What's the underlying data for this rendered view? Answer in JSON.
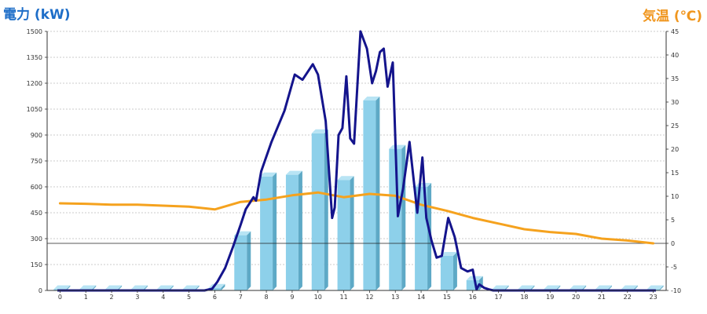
{
  "chart_data": {
    "type": "bar",
    "title_left": "電力 (kW)",
    "title_right": "気温 (℃)",
    "categories": [
      "0",
      "1",
      "2",
      "3",
      "4",
      "5",
      "6",
      "7",
      "8",
      "9",
      "10",
      "11",
      "12",
      "13",
      "14",
      "15",
      "16",
      "17",
      "18",
      "19",
      "20",
      "21",
      "22",
      "23"
    ],
    "y_left_ticks": [
      "0",
      "150",
      "300",
      "450",
      "600",
      "750",
      "900",
      "1050",
      "1200",
      "1350",
      "1500"
    ],
    "y_right_ticks": [
      "-10",
      "-5",
      "0",
      "5",
      "10",
      "15",
      "20",
      "25",
      "30",
      "35",
      "40",
      "45"
    ],
    "ylim_left": [
      0,
      1500
    ],
    "ylim_right": [
      -10,
      45
    ],
    "series": [
      {
        "kind": "bar",
        "values": [
          0,
          0,
          0,
          0,
          0,
          0,
          15,
          320,
          660,
          670,
          910,
          640,
          1100,
          820,
          600,
          200,
          60,
          0,
          0,
          0,
          0,
          0,
          0,
          0
        ]
      },
      {
        "kind": "line",
        "axis": "left",
        "x": [
          5.6,
          5.9,
          6.1,
          6.4,
          6.7,
          7.0,
          7.2,
          7.5,
          7.6,
          7.8,
          8.2,
          8.7,
          9.1,
          9.4,
          9.8,
          10.0,
          10.3,
          10.55,
          10.65,
          10.8,
          10.95,
          11.1,
          11.25,
          11.4,
          11.65,
          11.9,
          12.1,
          12.25,
          12.4,
          12.55,
          12.7,
          12.9,
          13.1,
          13.3,
          13.55,
          13.85,
          14.05,
          14.2,
          14.4,
          14.6,
          14.8,
          15.05,
          15.3,
          15.55,
          15.8,
          16.0,
          16.15,
          16.25,
          16.45,
          16.65,
          16.8,
          17.0
        ],
        "values": [
          0,
          10,
          50,
          130,
          250,
          380,
          470,
          540,
          520,
          690,
          860,
          1040,
          1250,
          1220,
          1310,
          1250,
          980,
          420,
          480,
          900,
          940,
          1240,
          880,
          850,
          1500,
          1400,
          1200,
          1270,
          1380,
          1400,
          1180,
          1320,
          430,
          590,
          860,
          450,
          770,
          420,
          290,
          190,
          200,
          420,
          310,
          130,
          110,
          120,
          5,
          35,
          15,
          5,
          0,
          0
        ]
      },
      {
        "kind": "line",
        "axis": "right",
        "x": [
          0,
          1,
          2,
          3,
          4,
          5,
          6,
          7,
          8,
          9,
          10,
          11,
          12,
          13,
          14,
          15,
          16,
          17,
          18,
          19,
          20,
          21,
          22,
          23
        ],
        "values": [
          8.5,
          8.4,
          8.2,
          8.2,
          8.0,
          7.8,
          7.2,
          8.8,
          9.3,
          10.2,
          10.8,
          9.8,
          10.5,
          10.1,
          8.2,
          6.9,
          5.4,
          4.2,
          3.0,
          2.4,
          2.0,
          1.0,
          0.6,
          0
        ]
      }
    ],
    "colors": {
      "bar_face": "#8dd0ea",
      "bar_side": "#5ea9c6",
      "bar_top": "#b8e4f4",
      "power_line": "#14148c",
      "temp_line": "#f5a21e",
      "grid": "#bbbbbb"
    }
  }
}
